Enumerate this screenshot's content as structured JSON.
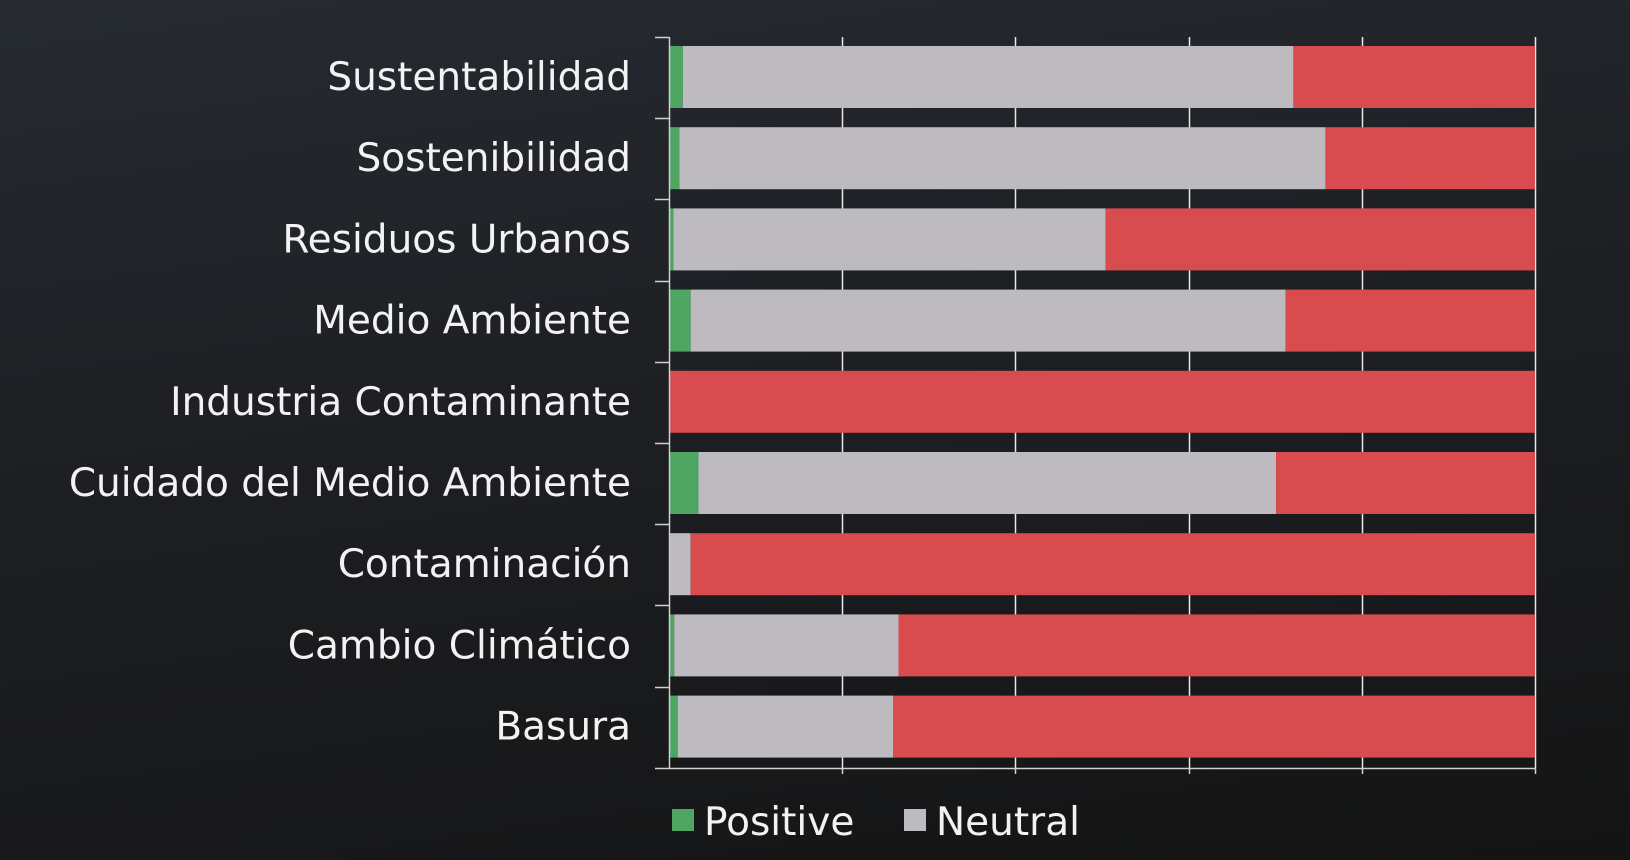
{
  "chart_data": {
    "type": "bar",
    "orientation": "horizontal",
    "stacked": true,
    "normalized": true,
    "categories": [
      "Sustentabilidad",
      "Sostenibilidad",
      "Residuos Urbanos",
      "Medio Ambiente",
      "Industria Contaminante",
      "Cuidado del Medio Ambiente",
      "Contaminación",
      "Cambio Climático",
      "Basura"
    ],
    "series": [
      {
        "name": "Positive",
        "color": "#4ea662",
        "values": [
          0.016,
          0.012,
          0.005,
          0.025,
          0.0,
          0.034,
          0.0,
          0.006,
          0.01
        ]
      },
      {
        "name": "Neutral",
        "color": "#bdbbc0",
        "values": [
          0.705,
          0.746,
          0.499,
          0.687,
          0.0,
          0.667,
          0.025,
          0.259,
          0.249
        ]
      },
      {
        "name": "",
        "color": "#d84b4f",
        "values": [
          0.279,
          0.242,
          0.496,
          0.288,
          1.0,
          0.299,
          0.975,
          0.735,
          0.741
        ]
      }
    ],
    "xlim": [
      0,
      1
    ],
    "x_gridlines": 5,
    "grid": true,
    "legend": "bottom",
    "title": "",
    "xlabel": "",
    "ylabel": ""
  }
}
